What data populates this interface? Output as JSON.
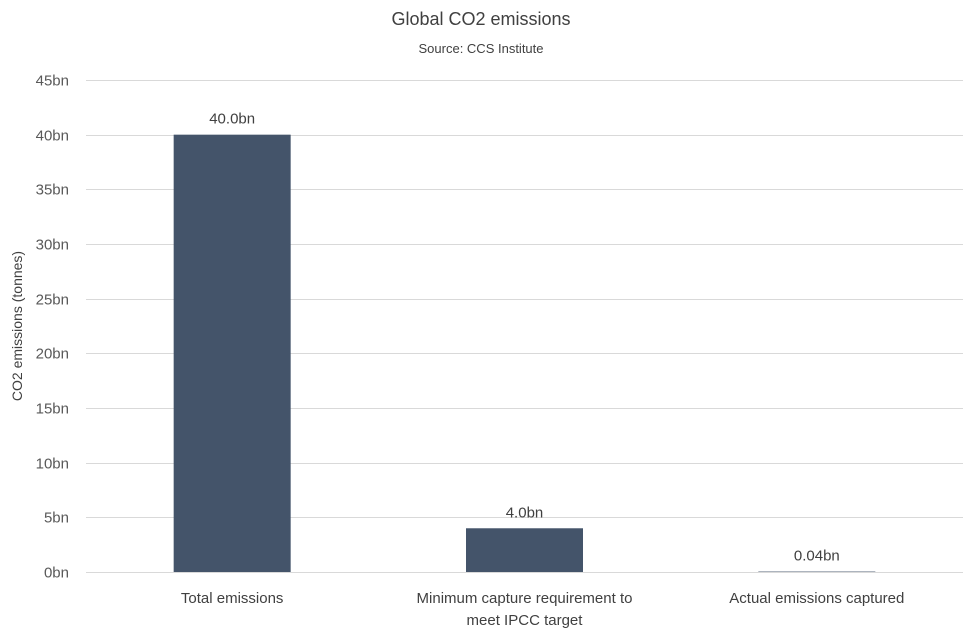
{
  "chart_data": {
    "type": "bar",
    "title": "Global CO2 emissions",
    "subtitle": "Source: CCS Institute",
    "ylabel": "CO2 emissions (tonnes)",
    "xlabel": "",
    "categories": [
      [
        "Total emissions"
      ],
      [
        "Minimum capture requirement to",
        "meet IPCC target"
      ],
      [
        "Actual emissions captured"
      ]
    ],
    "values": [
      40.0,
      4.0,
      0.04
    ],
    "data_labels": [
      "40.0bn",
      "4.0bn",
      "0.04bn"
    ],
    "y_ticks": [
      0,
      5,
      10,
      15,
      20,
      25,
      30,
      35,
      40,
      45
    ],
    "y_tick_labels": [
      "0bn",
      "5bn",
      "10bn",
      "15bn",
      "20bn",
      "25bn",
      "30bn",
      "35bn",
      "40bn",
      "45bn"
    ],
    "ylim": [
      0,
      45
    ],
    "grid": true,
    "bar_color": "#44546a"
  }
}
